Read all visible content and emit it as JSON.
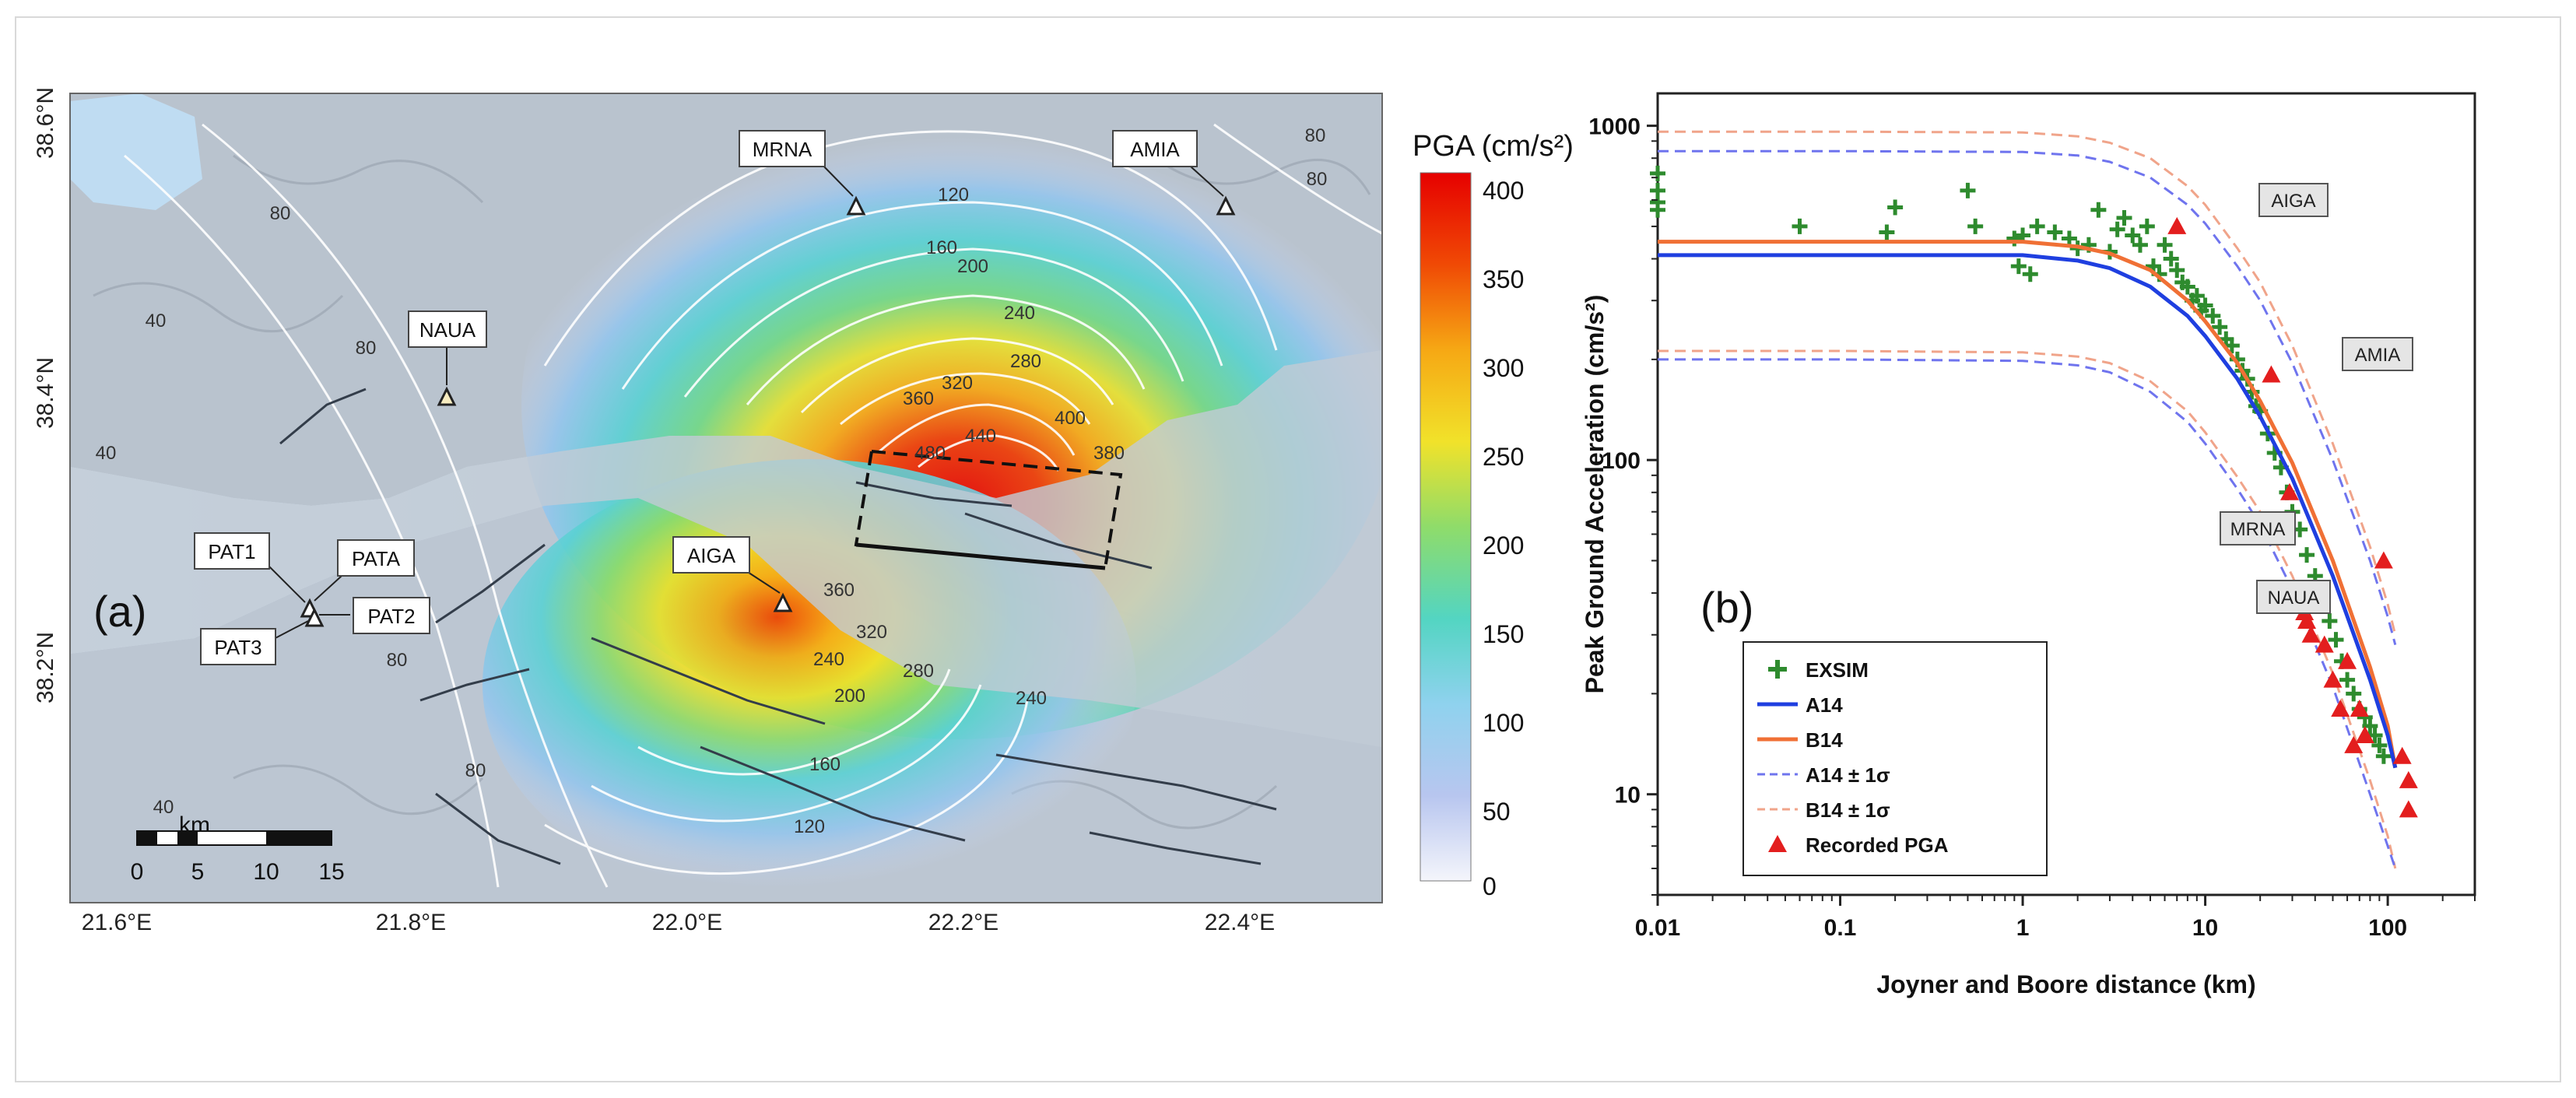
{
  "map": {
    "panel_label": "(a)",
    "lat_labels": [
      "38.6°N",
      "38.4°N",
      "38.2°N"
    ],
    "lon_labels": [
      "21.6°E",
      "21.8°E",
      "22.0°E",
      "22.2°E",
      "22.4°E"
    ],
    "colorbar": {
      "title": "PGA (cm/s²)",
      "ticks": [
        "400",
        "350",
        "300",
        "250",
        "200",
        "150",
        "100",
        "50",
        "0"
      ],
      "colors": [
        "#e60000",
        "#f36a0b",
        "#f6c317",
        "#dde74a",
        "#52d39b",
        "#5fd5e0",
        "#a8c3ec",
        "#eef1fb"
      ]
    },
    "scalebar": {
      "unit": "km",
      "ticks": [
        "0",
        "5",
        "10",
        "15"
      ]
    },
    "stations": [
      {
        "name": "MRNA",
        "icon": "triangle-icon"
      },
      {
        "name": "AMIA",
        "icon": "triangle-icon"
      },
      {
        "name": "NAUA",
        "icon": "triangle-icon"
      },
      {
        "name": "AIGA",
        "icon": "triangle-icon"
      },
      {
        "name": "PAT1",
        "icon": "triangle-icon"
      },
      {
        "name": "PATA",
        "icon": "triangle-icon"
      },
      {
        "name": "PAT2",
        "icon": "triangle-icon"
      },
      {
        "name": "PAT3",
        "icon": "triangle-icon"
      }
    ],
    "contour_labels": [
      "40",
      "40",
      "40",
      "80",
      "80",
      "80",
      "80",
      "80",
      "80",
      "120",
      "120",
      "160",
      "160",
      "200",
      "200",
      "240",
      "240",
      "240",
      "280",
      "280",
      "320",
      "320",
      "360",
      "360",
      "400",
      "380",
      "440",
      "480"
    ]
  },
  "chart_data": {
    "type": "scatter",
    "panel_label": "(b)",
    "xlabel": "Joyner and Boore distance (km)",
    "ylabel": "Peak Ground Acceleration (cm/s²)",
    "xscale": "log",
    "yscale": "log",
    "xlim": [
      0.01,
      300
    ],
    "ylim": [
      5,
      1250
    ],
    "xticks": [
      "0.01",
      "0.1",
      "1",
      "10",
      "100"
    ],
    "yticks": [
      "1000",
      "100",
      "10"
    ],
    "grid": false,
    "legend_position": "bottom-left",
    "colors": {
      "EXSIM": "#2e8b2e",
      "A14": "#1f3fe0",
      "B14": "#f07035",
      "A14_sigma": "#6f74ee",
      "B14_sigma": "#f0a48a",
      "Recorded": "#e31e1e"
    },
    "series": [
      {
        "name": "EXSIM",
        "marker": "plus",
        "x": [
          0.01,
          0.01,
          0.01,
          0.01,
          0.06,
          0.18,
          0.2,
          0.5,
          0.55,
          0.9,
          0.95,
          1.0,
          1.1,
          1.2,
          1.5,
          1.8,
          2.0,
          2.3,
          2.6,
          3.0,
          3.3,
          3.6,
          4.0,
          4.4,
          4.8,
          5.2,
          5.6,
          6,
          6.5,
          7,
          7.5,
          8,
          8.5,
          9,
          9.5,
          10,
          11,
          12,
          13,
          14,
          15,
          16,
          17,
          18,
          19,
          20,
          22,
          24,
          26,
          28,
          30,
          33,
          36,
          40,
          44,
          48,
          52,
          56,
          60,
          65,
          70,
          75,
          80,
          85,
          90,
          95
        ],
        "y": [
          720,
          640,
          590,
          560,
          500,
          480,
          570,
          640,
          500,
          460,
          380,
          470,
          360,
          500,
          480,
          460,
          430,
          440,
          560,
          420,
          490,
          530,
          470,
          440,
          500,
          380,
          360,
          440,
          400,
          370,
          340,
          330,
          300,
          310,
          280,
          290,
          270,
          250,
          230,
          220,
          200,
          185,
          175,
          160,
          145,
          140,
          120,
          105,
          95,
          80,
          70,
          62,
          52,
          45,
          38,
          33,
          29,
          25,
          22,
          20,
          18,
          17,
          16,
          15,
          14,
          13
        ]
      },
      {
        "name": "A14",
        "marker": "line",
        "x": [
          0.01,
          0.1,
          1,
          2,
          3,
          5,
          8,
          10,
          15,
          20,
          30,
          50,
          80,
          100,
          110
        ],
        "y": [
          410,
          410,
          410,
          395,
          375,
          330,
          270,
          235,
          175,
          135,
          88,
          45,
          22,
          15,
          12
        ]
      },
      {
        "name": "B14",
        "marker": "line",
        "x": [
          0.01,
          0.1,
          1,
          2,
          3,
          5,
          8,
          10,
          15,
          20,
          30,
          50,
          80,
          100,
          110
        ],
        "y": [
          450,
          450,
          450,
          435,
          415,
          370,
          300,
          260,
          195,
          150,
          98,
          50,
          24,
          16,
          12
        ]
      },
      {
        "name": "A14 ± 1σ",
        "marker": "dash",
        "x": [
          0.01,
          0.1,
          1,
          2,
          3,
          5,
          8,
          10,
          15,
          20,
          30,
          50,
          80,
          100,
          110
        ],
        "y_upper": [
          840,
          840,
          835,
          815,
          780,
          700,
          580,
          510,
          380,
          300,
          195,
          100,
          50,
          34,
          28
        ],
        "y_lower": [
          200,
          200,
          198,
          192,
          183,
          160,
          130,
          112,
          82,
          64,
          41,
          21,
          10,
          7,
          6
        ]
      },
      {
        "name": "B14 ± 1σ",
        "marker": "dash",
        "x": [
          0.01,
          0.1,
          1,
          2,
          3,
          5,
          8,
          10,
          15,
          20,
          30,
          50,
          80,
          100,
          110
        ],
        "y_upper": [
          960,
          960,
          955,
          930,
          890,
          800,
          660,
          580,
          430,
          340,
          220,
          112,
          55,
          37,
          30
        ],
        "y_lower": [
          212,
          212,
          210,
          204,
          195,
          172,
          140,
          121,
          89,
          70,
          45,
          23,
          11,
          7.5,
          6
        ]
      },
      {
        "name": "Recorded PGA",
        "marker": "triangle",
        "x": [
          7,
          23,
          20,
          29,
          33,
          35,
          36,
          38,
          40,
          45,
          50,
          55,
          60,
          65,
          70,
          75,
          95,
          120,
          130,
          130
        ],
        "y": [
          500,
          180,
          65,
          80,
          40,
          35,
          33,
          30,
          38,
          28,
          22,
          18,
          25,
          14,
          18,
          15,
          50,
          13,
          11,
          9
        ]
      }
    ],
    "annotations": [
      {
        "label": "AIGA"
      },
      {
        "label": "AMIA"
      },
      {
        "label": "MRNA"
      },
      {
        "label": "NAUA"
      }
    ],
    "legend": [
      "EXSIM",
      "A14",
      "B14",
      "A14 ± 1σ",
      "B14 ± 1σ",
      "Recorded PGA"
    ]
  }
}
